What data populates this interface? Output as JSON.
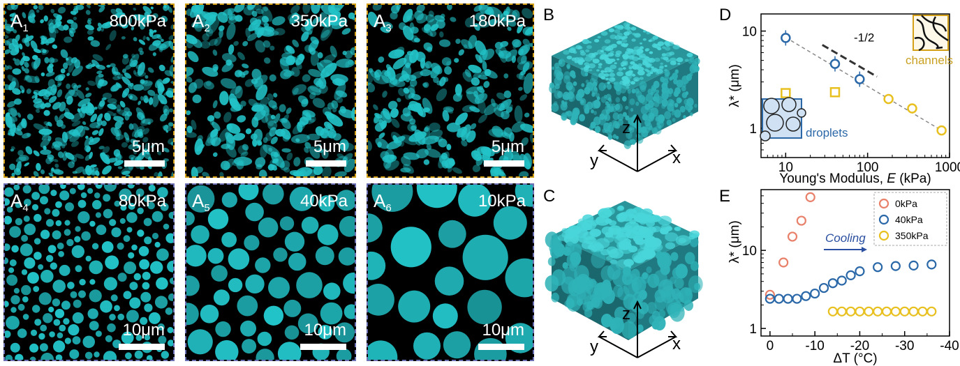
{
  "figure": {
    "panel_letters": {
      "B": "B",
      "C": "C",
      "D": "D",
      "E": "E"
    },
    "micrographs": [
      {
        "label": "A",
        "sub": "1",
        "modulus": "800kPa",
        "scalebar": "5μm",
        "type": "bicontinuous",
        "seed": 11
      },
      {
        "label": "A",
        "sub": "2",
        "modulus": "350kPa",
        "scalebar": "5μm",
        "type": "bicontinuous",
        "seed": 23
      },
      {
        "label": "A",
        "sub": "3",
        "modulus": "180kPa",
        "scalebar": "5μm",
        "type": "bicontinuous",
        "seed": 37
      },
      {
        "label": "A",
        "sub": "4",
        "modulus": "80kPa",
        "scalebar": "10μm",
        "type": "droplets",
        "seed": 41
      },
      {
        "label": "A",
        "sub": "5",
        "modulus": "40kPa",
        "scalebar": "10μm",
        "type": "droplets",
        "seed": 53
      },
      {
        "label": "A",
        "sub": "6",
        "modulus": "10kPa",
        "scalebar": "10μm",
        "type": "droplets",
        "seed": 67
      }
    ],
    "axes3d": {
      "x": "x",
      "y": "y",
      "z": "z"
    }
  },
  "colors": {
    "teal": "#22c3c8",
    "orange": "#e8806a",
    "blue": "#2b68a8",
    "yellow": "#e8c020",
    "dashed_border_gold": "#d4a017",
    "dashed_border_blue": "#6b6fb3"
  },
  "chart_data": [
    {
      "type": "scatter",
      "panel": "D",
      "xlabel": "Young's Modulus, ",
      "xlabel_var": "E",
      "xlabel_unit": " (kPa)",
      "ylabel": "λ* (μm)",
      "xscale": "log",
      "yscale": "log",
      "xlim": [
        5,
        1000
      ],
      "ylim": [
        0.5,
        15
      ],
      "xticks": [
        "10",
        "100",
        "1000"
      ],
      "yticks": [
        "1",
        "10"
      ],
      "series": [
        {
          "marker": "circle",
          "color": "#2b68a8",
          "x": [
            10,
            40,
            80
          ],
          "y": [
            8.5,
            4.6,
            3.2
          ]
        },
        {
          "marker": "circle",
          "color": "#e8c020",
          "x": [
            180,
            350,
            800
          ],
          "y": [
            2.0,
            1.6,
            0.95
          ]
        },
        {
          "marker": "square",
          "color": "#e8c020",
          "x": [
            10,
            40
          ],
          "y": [
            2.3,
            2.35
          ]
        }
      ],
      "slope_label": "-1/2",
      "inset_labels": {
        "channels": "channels",
        "droplets": "droplets"
      }
    },
    {
      "type": "scatter",
      "panel": "E",
      "xlabel": "ΔT (°C)",
      "ylabel": "λ* (μm)",
      "yscale": "log",
      "xlim": [
        2,
        -40
      ],
      "ylim": [
        0.8,
        60
      ],
      "xticks": [
        "0",
        "-10",
        "-20",
        "-30",
        "-40"
      ],
      "yticks": [
        "1",
        "10"
      ],
      "legend": [
        "0kPa",
        "40kPa",
        "350kPa"
      ],
      "legend_position": "top-right",
      "annotation": "Cooling",
      "series": [
        {
          "name": "0kPa",
          "color": "#e8806a",
          "x": [
            0,
            -3,
            -5,
            -7,
            -9
          ],
          "y": [
            2.7,
            7.0,
            15,
            24,
            48
          ]
        },
        {
          "name": "40kPa",
          "color": "#2b68a8",
          "x": [
            0,
            -2,
            -4,
            -6,
            -8,
            -10,
            -12,
            -14,
            -16,
            -18,
            -20,
            -24,
            -28,
            -32,
            -36
          ],
          "y": [
            2.4,
            2.4,
            2.4,
            2.4,
            2.6,
            2.8,
            3.3,
            3.8,
            4.1,
            4.8,
            5.4,
            6.1,
            6.3,
            6.4,
            6.6
          ]
        },
        {
          "name": "350kPa",
          "color": "#e8c020",
          "x": [
            -14,
            -16,
            -18,
            -20,
            -22,
            -24,
            -26,
            -28,
            -30,
            -32,
            -34,
            -36
          ],
          "y": [
            1.65,
            1.65,
            1.65,
            1.65,
            1.65,
            1.65,
            1.65,
            1.65,
            1.65,
            1.65,
            1.65,
            1.65
          ]
        }
      ]
    }
  ]
}
